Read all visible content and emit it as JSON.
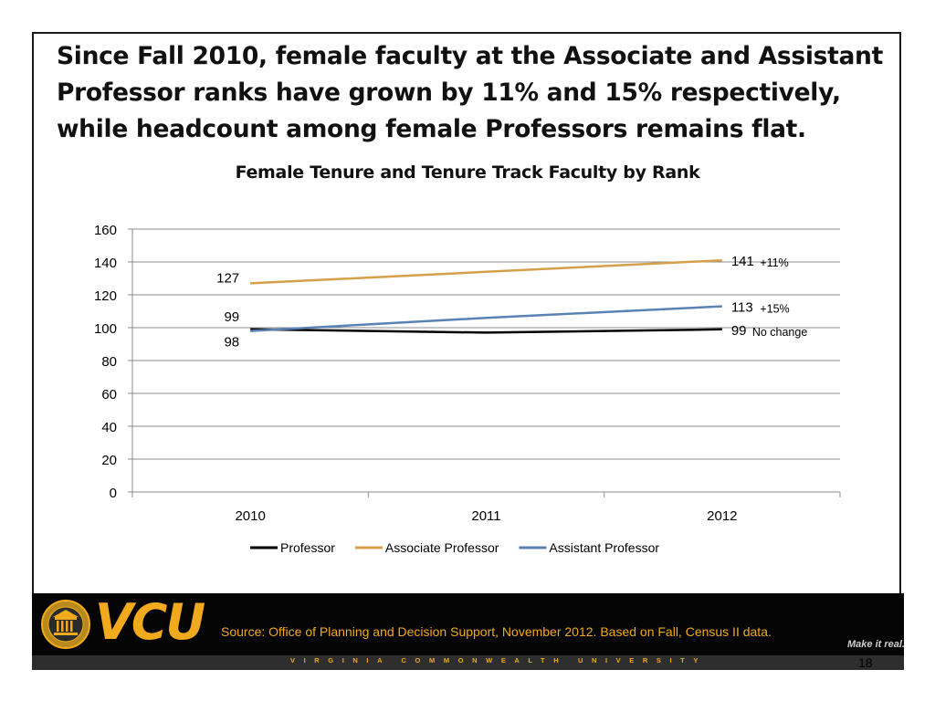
{
  "slide": {
    "headline": "Since Fall 2010, female faculty at the Associate and Assistant Professor ranks have grown by 11% and 15% respectively, while headcount among female Professors remains flat.",
    "page_number": "18"
  },
  "chart_data": {
    "type": "line",
    "title": "Female Tenure and Tenure Track Faculty by Rank",
    "xlabel": "",
    "ylabel": "",
    "categories": [
      "2010",
      "2011",
      "2012"
    ],
    "ylim": [
      0,
      160
    ],
    "yticks": [
      0,
      20,
      40,
      60,
      80,
      100,
      120,
      140,
      160
    ],
    "grid": true,
    "legend_position": "bottom",
    "series": [
      {
        "name": "Professor",
        "color": "#000000",
        "values": [
          99,
          97,
          99
        ],
        "labels": [
          "99",
          "",
          "99"
        ],
        "end_note": "No change"
      },
      {
        "name": "Associate Professor",
        "color": "#d6a04a",
        "values": [
          127,
          134,
          141
        ],
        "labels": [
          "127",
          "",
          "141"
        ],
        "end_note": "+11%"
      },
      {
        "name": "Assistant Professor",
        "color": "#5b82b5",
        "values": [
          98,
          106,
          113
        ],
        "labels": [
          "98",
          "",
          "113"
        ],
        "end_note": "+15%"
      }
    ]
  },
  "footer": {
    "logo_text": "VCU",
    "source": "Source: Office of Planning and Decision Support, November 2012. Based on Fall, Census II data.",
    "tagline": "Make it real.",
    "university_name": "VIRGINIA COMMONWEALTH UNIVERSITY",
    "colors": {
      "accent": "#f1a91d",
      "bar": "#050505"
    }
  }
}
